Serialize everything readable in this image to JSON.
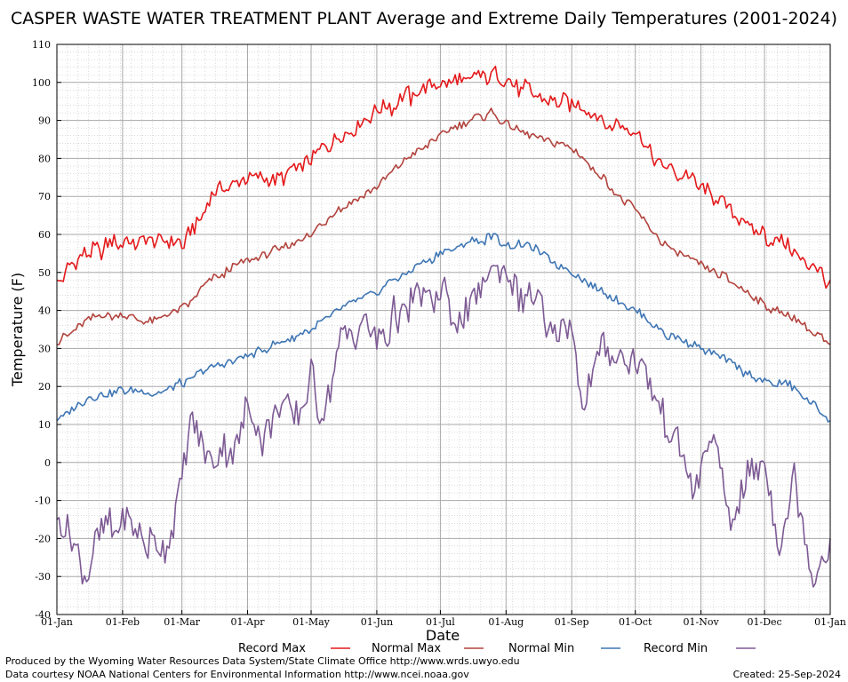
{
  "chart_data": {
    "type": "line",
    "title": "CASPER WASTE WATER TREATMENT PLANT Average and Extreme Daily Temperatures (2001-2024)",
    "xlabel": "Date",
    "ylabel": "Temperature (F)",
    "ylim": [
      -40,
      110
    ],
    "yticks": [
      110,
      100,
      90,
      80,
      70,
      60,
      50,
      40,
      30,
      20,
      10,
      0,
      -10,
      -20,
      -30,
      -40
    ],
    "xticks": [
      {
        "label": "01-Jan",
        "day": 1
      },
      {
        "label": "01-Feb",
        "day": 32
      },
      {
        "label": "01-Mar",
        "day": 60
      },
      {
        "label": "01-Apr",
        "day": 91
      },
      {
        "label": "01-May",
        "day": 121
      },
      {
        "label": "01-Jun",
        "day": 152
      },
      {
        "label": "01-Jul",
        "day": 182
      },
      {
        "label": "01-Aug",
        "day": 213
      },
      {
        "label": "01-Sep",
        "day": 244
      },
      {
        "label": "01-Oct",
        "day": 274
      },
      {
        "label": "01-Nov",
        "day": 305
      },
      {
        "label": "01-Dec",
        "day": 335
      },
      {
        "label": "01-Jan",
        "day": 366
      }
    ],
    "grid": true,
    "legend_position": "bottom",
    "x_unit": "day of year",
    "series": [
      {
        "name": "Record Max",
        "color": "#e41a1c",
        "x": [
          1,
          15,
          32,
          46,
          60,
          74,
          91,
          105,
          121,
          135,
          152,
          166,
          182,
          196,
          206,
          213,
          227,
          244,
          258,
          274,
          288,
          305,
          319,
          335,
          349,
          366
        ],
        "y": [
          48,
          55,
          58,
          58,
          57,
          70,
          76,
          74,
          80,
          87,
          92,
          96,
          100,
          101,
          102,
          100,
          97,
          95,
          90,
          86,
          78,
          73,
          66,
          60,
          55,
          48
        ]
      },
      {
        "name": "Normal Max",
        "color": "#b2443e",
        "x": [
          1,
          15,
          32,
          46,
          60,
          74,
          91,
          105,
          121,
          135,
          152,
          166,
          182,
          196,
          206,
          213,
          227,
          244,
          258,
          274,
          288,
          305,
          319,
          335,
          349,
          366
        ],
        "y": [
          31,
          38,
          39,
          37,
          40,
          48,
          53,
          56,
          60,
          67,
          72,
          80,
          86,
          90,
          92,
          89,
          86,
          83,
          75,
          66,
          57,
          52,
          48,
          41,
          38,
          31
        ]
      },
      {
        "name": "Normal Min",
        "color": "#3f76b4",
        "x": [
          1,
          15,
          32,
          46,
          60,
          74,
          91,
          105,
          121,
          135,
          152,
          166,
          182,
          196,
          206,
          213,
          227,
          244,
          258,
          274,
          288,
          305,
          319,
          335,
          349,
          366
        ],
        "y": [
          11,
          17,
          19,
          18,
          21,
          25,
          28,
          31,
          35,
          40,
          45,
          50,
          55,
          58,
          59,
          58,
          56,
          50,
          45,
          40,
          34,
          30,
          26,
          21,
          20,
          11
        ]
      },
      {
        "name": "Record Min",
        "color": "#7d5a94",
        "x": [
          1,
          8,
          15,
          22,
          32,
          40,
          46,
          52,
          60,
          65,
          74,
          85,
          91,
          98,
          105,
          115,
          121,
          126,
          135,
          145,
          152,
          160,
          170,
          182,
          192,
          198,
          206,
          213,
          220,
          227,
          235,
          244,
          250,
          258,
          266,
          274,
          285,
          295,
          302,
          310,
          319,
          326,
          335,
          342,
          349,
          358,
          366
        ],
        "y": [
          -15,
          -22,
          -29,
          -18,
          -15,
          -20,
          -22,
          -24,
          -5,
          12,
          -1,
          5,
          15,
          4,
          15,
          10,
          23,
          13,
          30,
          38,
          30,
          38,
          42,
          45,
          35,
          44,
          50,
          48,
          44,
          42,
          33,
          37,
          15,
          29,
          28,
          27,
          15,
          6,
          -6,
          10,
          -17,
          -5,
          -1,
          -24,
          -5,
          -30,
          -20
        ]
      }
    ],
    "credits": {
      "produced_by": "Produced by the Wyoming Water Resources Data System/State Climate Office http://www.wrds.uwyo.edu",
      "data_courtesy": "Data courtesy NOAA National Centers for Environmental Information http://www.ncei.noaa.gov",
      "created": "Created:  25-Sep-2024"
    }
  }
}
